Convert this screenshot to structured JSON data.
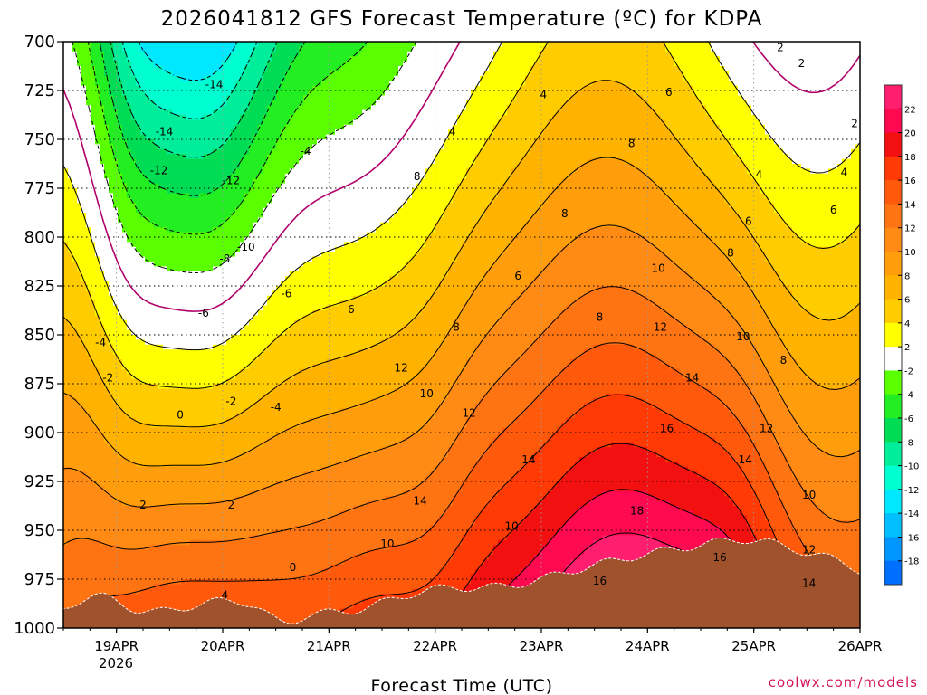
{
  "chart_data": {
    "type": "heatmap",
    "title": "2026041812 GFS Forecast Temperature (ºC) for KDPA",
    "xlabel": "Forecast Time (UTC)",
    "ylabel": "",
    "credit": "coolwx.com/models",
    "x_ticks": [
      "19APR",
      "20APR",
      "21APR",
      "22APR",
      "23APR",
      "24APR",
      "25APR",
      "26APR"
    ],
    "x_tick_positions": [
      0.5,
      1.5,
      2.5,
      3.5,
      4.5,
      5.5,
      6.5,
      7.5
    ],
    "x_year": "2026",
    "xlim": [
      0,
      7.5
    ],
    "y_ticks": [
      "700",
      "725",
      "750",
      "775",
      "800",
      "825",
      "850",
      "875",
      "900",
      "925",
      "950",
      "975",
      "1000"
    ],
    "y_tick_values": [
      700,
      725,
      750,
      775,
      800,
      825,
      850,
      875,
      900,
      925,
      950,
      975,
      1000
    ],
    "ylim": [
      700,
      1000
    ],
    "colorbar": {
      "labels": [
        "22",
        "20",
        "18",
        "16",
        "14",
        "12",
        "10",
        "8",
        "6",
        "4",
        "2",
        "-2",
        "-4",
        "-6",
        "-8",
        "-10",
        "-12",
        "-14",
        "-16",
        "-18"
      ],
      "label_values": [
        22,
        20,
        18,
        16,
        14,
        12,
        10,
        8,
        6,
        4,
        2,
        -2,
        -4,
        -6,
        -8,
        -10,
        -12,
        -14,
        -16,
        -18
      ],
      "bands": [
        {
          "lo": 22,
          "hi": 24,
          "color": "#ff1f6e"
        },
        {
          "lo": 20,
          "hi": 22,
          "color": "#ff0a50"
        },
        {
          "lo": 18,
          "hi": 20,
          "color": "#f21010"
        },
        {
          "lo": 16,
          "hi": 18,
          "color": "#ff3a05"
        },
        {
          "lo": 14,
          "hi": 16,
          "color": "#ff5a0c"
        },
        {
          "lo": 12,
          "hi": 14,
          "color": "#ff7412"
        },
        {
          "lo": 10,
          "hi": 12,
          "color": "#ff8a14"
        },
        {
          "lo": 8,
          "hi": 10,
          "color": "#ff9e0a"
        },
        {
          "lo": 6,
          "hi": 8,
          "color": "#ffb200"
        },
        {
          "lo": 4,
          "hi": 6,
          "color": "#ffcc00"
        },
        {
          "lo": 2,
          "hi": 4,
          "color": "#ffff00"
        },
        {
          "lo": -2,
          "hi": 2,
          "color": "#ffffff"
        },
        {
          "lo": -4,
          "hi": -2,
          "color": "#5aff00"
        },
        {
          "lo": -6,
          "hi": -4,
          "color": "#22ee22"
        },
        {
          "lo": -8,
          "hi": -6,
          "color": "#00dd55"
        },
        {
          "lo": -10,
          "hi": -8,
          "color": "#00ee99"
        },
        {
          "lo": -12,
          "hi": -10,
          "color": "#00ffd0"
        },
        {
          "lo": -14,
          "hi": -12,
          "color": "#00e8ff"
        },
        {
          "lo": -16,
          "hi": -14,
          "color": "#00bfff"
        },
        {
          "lo": -18,
          "hi": -16,
          "color": "#0096ff"
        },
        {
          "lo": -20,
          "hi": -18,
          "color": "#006eff"
        }
      ]
    },
    "terrain_color": "#a0522d",
    "zero_line_color": "#b0006a",
    "contour_labels": [
      {
        "text": "-14",
        "t": 1.42,
        "p": 722
      },
      {
        "text": "-14",
        "t": 0.95,
        "p": 746
      },
      {
        "text": "-12",
        "t": 0.9,
        "p": 766
      },
      {
        "text": "-12",
        "t": 1.58,
        "p": 771
      },
      {
        "text": "-10",
        "t": 1.72,
        "p": 805
      },
      {
        "text": "-8",
        "t": 1.52,
        "p": 811
      },
      {
        "text": "-6",
        "t": 1.32,
        "p": 839
      },
      {
        "text": "-6",
        "t": 2.1,
        "p": 829
      },
      {
        "text": "-4",
        "t": 2.28,
        "p": 756
      },
      {
        "text": "-4",
        "t": 2.0,
        "p": 887
      },
      {
        "text": "-4",
        "t": 0.35,
        "p": 854
      },
      {
        "text": "-2",
        "t": 0.42,
        "p": 872
      },
      {
        "text": "-2",
        "t": 1.58,
        "p": 884
      },
      {
        "text": "0",
        "t": 1.1,
        "p": 891
      },
      {
        "text": "0",
        "t": 2.16,
        "p": 969
      },
      {
        "text": "2",
        "t": 0.75,
        "p": 937
      },
      {
        "text": "2",
        "t": 1.58,
        "p": 937
      },
      {
        "text": "4",
        "t": 1.52,
        "p": 983
      },
      {
        "text": "4",
        "t": 3.66,
        "p": 746
      },
      {
        "text": "4",
        "t": 4.52,
        "p": 727
      },
      {
        "text": "6",
        "t": 2.71,
        "p": 837
      },
      {
        "text": "6",
        "t": 4.28,
        "p": 820
      },
      {
        "text": "8",
        "t": 3.33,
        "p": 769
      },
      {
        "text": "8",
        "t": 4.72,
        "p": 788
      },
      {
        "text": "8",
        "t": 5.35,
        "p": 752
      },
      {
        "text": "8",
        "t": 3.7,
        "p": 846
      },
      {
        "text": "8",
        "t": 5.05,
        "p": 841
      },
      {
        "text": "10",
        "t": 3.42,
        "p": 880
      },
      {
        "text": "10",
        "t": 3.05,
        "p": 957
      },
      {
        "text": "10",
        "t": 4.22,
        "p": 948
      },
      {
        "text": "10",
        "t": 5.6,
        "p": 816
      },
      {
        "text": "10",
        "t": 6.4,
        "p": 851
      },
      {
        "text": "10",
        "t": 7.02,
        "p": 932
      },
      {
        "text": "12",
        "t": 3.18,
        "p": 867
      },
      {
        "text": "12",
        "t": 3.82,
        "p": 890
      },
      {
        "text": "12",
        "t": 5.62,
        "p": 846
      },
      {
        "text": "12",
        "t": 6.62,
        "p": 898
      },
      {
        "text": "12",
        "t": 7.02,
        "p": 960
      },
      {
        "text": "14",
        "t": 3.36,
        "p": 935
      },
      {
        "text": "14",
        "t": 4.38,
        "p": 914
      },
      {
        "text": "14",
        "t": 5.92,
        "p": 872
      },
      {
        "text": "14",
        "t": 6.42,
        "p": 914
      },
      {
        "text": "14",
        "t": 7.02,
        "p": 977
      },
      {
        "text": "16",
        "t": 5.68,
        "p": 898
      },
      {
        "text": "16",
        "t": 5.05,
        "p": 976
      },
      {
        "text": "16",
        "t": 6.18,
        "p": 964
      },
      {
        "text": "18",
        "t": 5.4,
        "p": 940
      },
      {
        "text": "2",
        "t": 6.75,
        "p": 703
      },
      {
        "text": "2",
        "t": 6.95,
        "p": 711
      },
      {
        "text": "2",
        "t": 7.45,
        "p": 742
      },
      {
        "text": "4",
        "t": 6.55,
        "p": 768
      },
      {
        "text": "4",
        "t": 7.35,
        "p": 767
      },
      {
        "text": "6",
        "t": 5.7,
        "p": 726
      },
      {
        "text": "6",
        "t": 6.45,
        "p": 792
      },
      {
        "text": "6",
        "t": 7.25,
        "p": 786
      },
      {
        "text": "8",
        "t": 6.28,
        "p": 808
      },
      {
        "text": "8",
        "t": 6.78,
        "p": 863
      }
    ]
  }
}
